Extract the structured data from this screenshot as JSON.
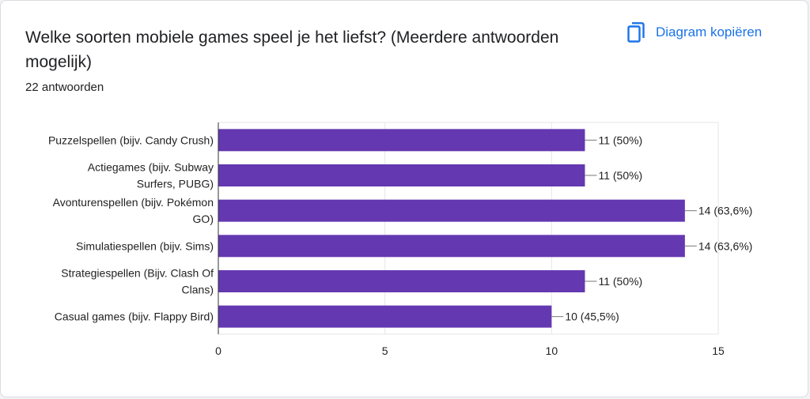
{
  "header": {
    "title": "Welke soorten mobiele games speel je het liefst? (Meerdere antwoorden mogelijk)",
    "responses": "22 antwoorden",
    "copy_label": "Diagram kopiëren",
    "copy_icon": "copy-icon"
  },
  "colors": {
    "bar": "#6438b1",
    "accent": "#1a73e8",
    "grid": "#e6e6e6"
  },
  "chart_data": {
    "type": "bar",
    "orientation": "horizontal",
    "categories": [
      [
        "Puzzelspellen (bijv. Candy Crush)"
      ],
      [
        "Actiegames (bijv. Subway",
        "Surfers, PUBG)"
      ],
      [
        "Avonturenspellen (bijv. Pokémon",
        "GO)"
      ],
      [
        "Simulatiespellen (bijv. Sims)"
      ],
      [
        "Strategiespellen (Bijv. Clash Of",
        "Clans)"
      ],
      [
        "Casual games (bijv. Flappy Bird)"
      ]
    ],
    "values": [
      11,
      11,
      14,
      14,
      11,
      10
    ],
    "data_labels": [
      "11 (50%)",
      "11 (50%)",
      "14 (63,6%)",
      "14 (63,6%)",
      "11 (50%)",
      "10 (45,5%)"
    ],
    "xlim": [
      0,
      15
    ],
    "xticks": [
      0,
      5,
      10,
      15
    ],
    "grid": true,
    "xlabel": "",
    "ylabel": ""
  }
}
